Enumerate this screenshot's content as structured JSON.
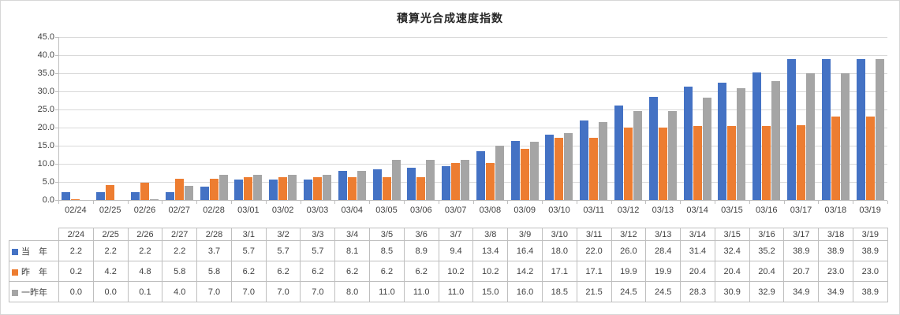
{
  "window": {
    "background": "#FFFFFF",
    "border_color": "#D6D6D6"
  },
  "chart_data": {
    "type": "bar",
    "title": "積算光合成速度指数",
    "xlabel": "",
    "ylabel": "",
    "ylim": [
      0,
      45
    ],
    "ytick_step": 5,
    "ytick_labels": [
      "0.0",
      "5.0",
      "10.0",
      "15.0",
      "20.0",
      "25.0",
      "30.0",
      "35.0",
      "40.0",
      "45.0"
    ],
    "grid": true,
    "legend_position": "table-left",
    "categories_axis": [
      "02/24",
      "02/25",
      "02/26",
      "02/27",
      "02/28",
      "03/01",
      "03/02",
      "03/03",
      "03/04",
      "03/05",
      "03/06",
      "03/07",
      "03/08",
      "03/09",
      "03/10",
      "03/11",
      "03/12",
      "03/13",
      "03/14",
      "03/15",
      "03/16",
      "03/17",
      "03/18",
      "03/19"
    ],
    "categories_table": [
      "2/24",
      "2/25",
      "2/26",
      "2/27",
      "2/28",
      "3/1",
      "3/2",
      "3/3",
      "3/4",
      "3/5",
      "3/6",
      "3/7",
      "3/8",
      "3/9",
      "3/10",
      "3/11",
      "3/12",
      "3/13",
      "3/14",
      "3/15",
      "3/16",
      "3/17",
      "3/18",
      "3/19"
    ],
    "series": [
      {
        "key": "this-year",
        "name": "当　年",
        "color": "#4472C4",
        "values": [
          2.2,
          2.2,
          2.2,
          2.2,
          3.7,
          5.7,
          5.7,
          5.7,
          8.1,
          8.5,
          8.9,
          9.4,
          13.4,
          16.4,
          18.0,
          22.0,
          26.0,
          28.4,
          31.4,
          32.4,
          35.2,
          38.9,
          38.9,
          38.9
        ]
      },
      {
        "key": "last-year",
        "name": "昨　年",
        "color": "#ED7D31",
        "values": [
          0.2,
          4.2,
          4.8,
          5.8,
          5.8,
          6.2,
          6.2,
          6.2,
          6.2,
          6.2,
          6.2,
          10.2,
          10.2,
          14.2,
          17.1,
          17.1,
          19.9,
          19.9,
          20.4,
          20.4,
          20.4,
          20.7,
          23.0,
          23.0
        ]
      },
      {
        "key": "two-years-ago",
        "name": "一昨年",
        "color": "#A5A5A5",
        "values": [
          0.0,
          0.0,
          0.1,
          4.0,
          7.0,
          7.0,
          7.0,
          7.0,
          8.0,
          11.0,
          11.0,
          11.0,
          15.0,
          16.0,
          18.5,
          21.5,
          24.5,
          24.5,
          28.3,
          30.9,
          32.9,
          34.9,
          34.9,
          38.9
        ]
      }
    ],
    "colors": {
      "gridline": "#D9D9D9",
      "axis": "#BFBFBF",
      "table_border": "#BFBFBF",
      "text": "#404040",
      "title": "#262626"
    }
  }
}
